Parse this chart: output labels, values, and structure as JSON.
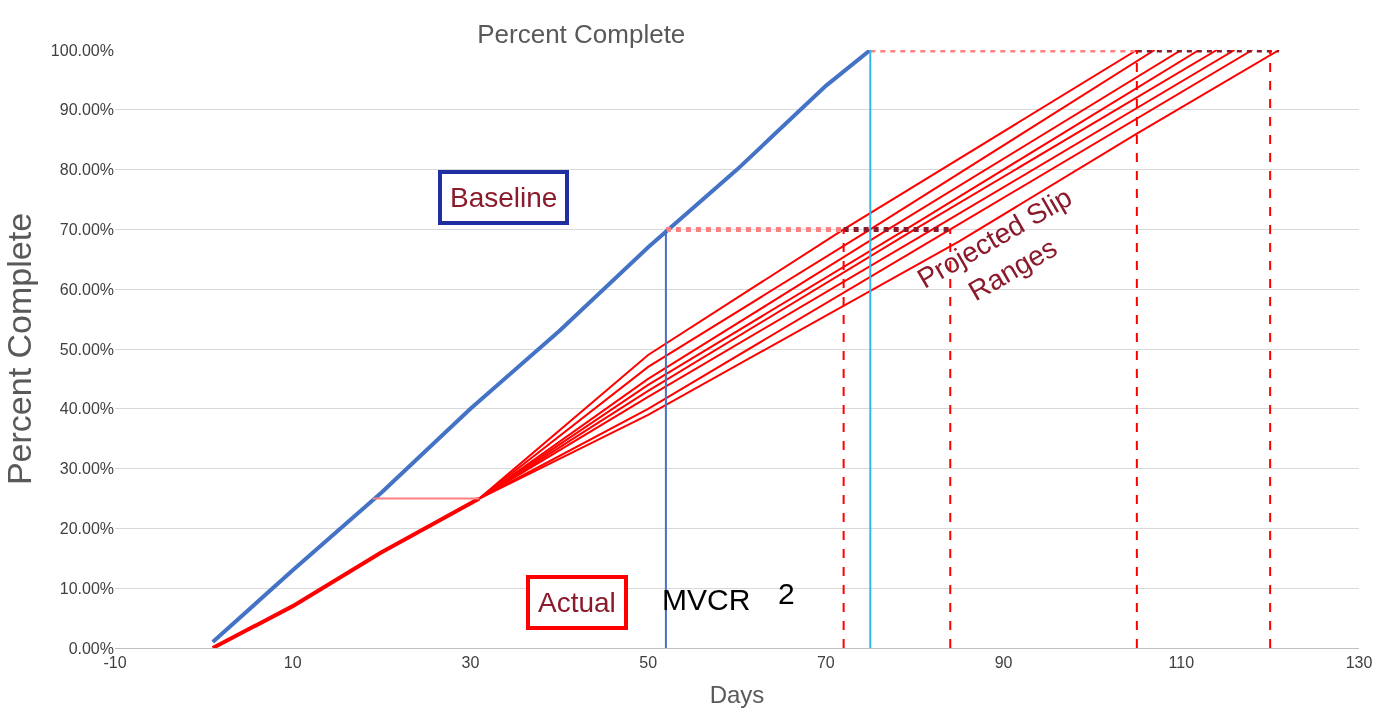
{
  "chart_data": {
    "type": "line",
    "title": "Percent Complete",
    "xlabel": "Days",
    "ylabel": "Percent Complete",
    "xlim": [
      -10,
      130
    ],
    "xticks": [
      -10,
      10,
      30,
      50,
      70,
      90,
      110,
      130
    ],
    "ylim": [
      0,
      100
    ],
    "yticks": [
      {
        "value": 0,
        "label": "0.00%"
      },
      {
        "value": 10,
        "label": "10.00%"
      },
      {
        "value": 20,
        "label": "20.00%"
      },
      {
        "value": 30,
        "label": "30.00%"
      },
      {
        "value": 40,
        "label": "40.00%"
      },
      {
        "value": 50,
        "label": "50.00%"
      },
      {
        "value": 60,
        "label": "60.00%"
      },
      {
        "value": 70,
        "label": "70.00%"
      },
      {
        "value": 80,
        "label": "80.00%"
      },
      {
        "value": 90,
        "label": "90.00%"
      },
      {
        "value": 100,
        "label": "100.00%"
      }
    ],
    "grid": "y",
    "legend": false,
    "marker": "none",
    "series": [
      {
        "color": "#4472c4",
        "x": [
          1,
          10,
          20,
          30,
          40,
          50,
          60,
          70,
          75
        ],
        "values": [
          1,
          13,
          26,
          40,
          53,
          67,
          80,
          94,
          100
        ]
      },
      {
        "type": "line",
        "color": "#ff0000",
        "x": [
          1,
          10,
          20,
          31
        ],
        "values": [
          0,
          7,
          16,
          25
        ]
      },
      {
        "type": "line",
        "color": "#ff0000",
        "x": [
          31,
          50,
          72,
          105
        ],
        "values": [
          25,
          49,
          70,
          100
        ]
      },
      {
        "type": "line",
        "color": "#ff0000",
        "x": [
          31,
          50,
          75,
          107
        ],
        "values": [
          25,
          47,
          70,
          100
        ]
      },
      {
        "type": "line",
        "color": "#ff0000",
        "x": [
          31,
          50,
          77,
          110
        ],
        "values": [
          25,
          45,
          70,
          100
        ]
      },
      {
        "type": "line",
        "color": "#ff0000",
        "x": [
          31,
          50,
          79,
          112
        ],
        "values": [
          25,
          44,
          70,
          100
        ]
      },
      {
        "type": "line",
        "color": "#ff0000",
        "x": [
          31,
          50,
          80,
          114
        ],
        "values": [
          25,
          43,
          70,
          100
        ]
      },
      {
        "type": "line",
        "color": "#ff0000",
        "x": [
          31,
          50,
          82,
          116
        ],
        "values": [
          25,
          42,
          70,
          100
        ]
      },
      {
        "type": "line",
        "color": "#ff0000",
        "x": [
          31,
          50,
          84,
          118
        ],
        "values": [
          25,
          40,
          70,
          100
        ]
      },
      {
        "type": "line",
        "color": "#ff0000",
        "x": [
          31,
          50,
          85,
          105,
          121
        ],
        "values": [
          25,
          39,
          68,
          86,
          100
        ]
      },
      {
        "type": "line",
        "color": "#ff8080",
        "x": [
          19,
          31
        ],
        "values": [
          25,
          25
        ]
      },
      {
        "type": "line",
        "color": "#ff8080",
        "line_style": "dotted",
        "x": [
          52,
          72
        ],
        "values": [
          70,
          70
        ]
      },
      {
        "type": "line",
        "color": "#8b1a2b",
        "line_style": "dotted",
        "x": [
          72,
          84
        ],
        "values": [
          70,
          70
        ]
      },
      {
        "type": "line",
        "color": "#ff8080",
        "line_style": "dotted",
        "x": [
          75,
          105
        ],
        "values": [
          100,
          100
        ]
      },
      {
        "type": "line",
        "color": "#8b1a2b",
        "line_style": "dotted",
        "x": [
          105,
          121
        ],
        "values": [
          100,
          100
        ]
      },
      {
        "type": "line",
        "color": "#4472c4",
        "x": [
          52,
          52
        ],
        "values": [
          0,
          70
        ]
      },
      {
        "type": "line",
        "color": "#33b5f0",
        "x": [
          75,
          75
        ],
        "values": [
          0,
          100
        ]
      },
      {
        "type": "line",
        "color": "#ff0000",
        "line_style": "dashed",
        "x": [
          72,
          72
        ],
        "values": [
          0,
          70
        ]
      },
      {
        "type": "line",
        "color": "#ff0000",
        "line_style": "dashed",
        "x": [
          84,
          84
        ],
        "values": [
          0,
          70
        ]
      },
      {
        "type": "line",
        "color": "#ff0000",
        "line_style": "dashed",
        "x": [
          105,
          105
        ],
        "values": [
          0,
          100
        ]
      },
      {
        "type": "line",
        "color": "#ff0000",
        "line_style": "dashed",
        "x": [
          120,
          120
        ],
        "values": [
          0,
          100
        ]
      }
    ],
    "annotations": [
      "Baseline",
      "Actual",
      "MVCR",
      "2",
      "Projected Slip Ranges"
    ]
  }
}
